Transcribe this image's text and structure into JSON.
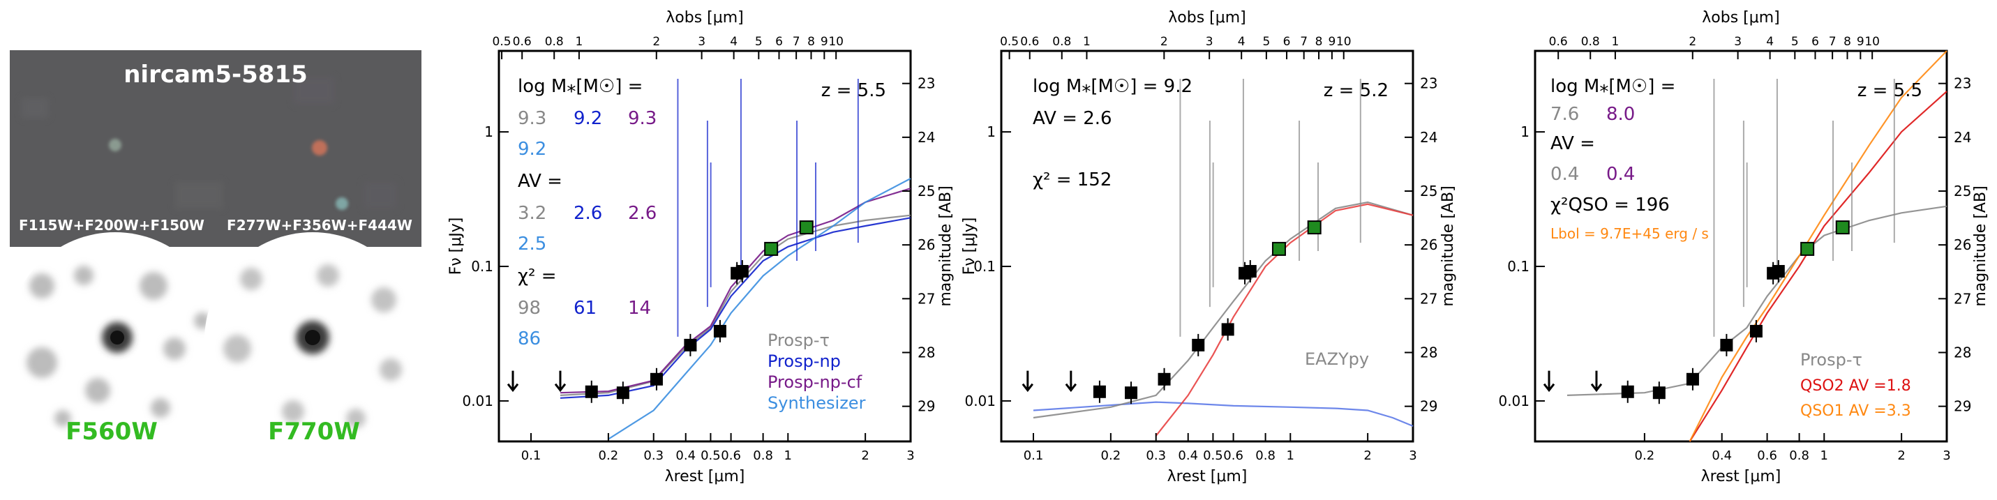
{
  "images": {
    "rgb_title": "nircam5-5815",
    "rgb_label_left": "F115W+F200W+F150W",
    "rgb_label_right": "F277W+F356W+F444W",
    "miri_label_left": "F560W",
    "miri_label_right": "F770W",
    "miri_label_color": "#33bb22"
  },
  "colors": {
    "prosp_tau": "#888888",
    "prosp_np": "#1122cc",
    "prosp_np_cf": "#771a88",
    "synthesizer": "#3b8ee0",
    "eazy": "#5d7ae8",
    "red_model": "#e84040",
    "qso2": "#dd1111",
    "qso1": "#ff8811",
    "miri_points": "#1f8a1f"
  },
  "chart_data": [
    {
      "type": "line",
      "xlabel": "λrest [μm]",
      "ylabel": "Fν [μJy]",
      "top_xlabel": "λobs [μm]",
      "right_ylabel": "magnitude [AB]",
      "xlog": true,
      "ylog": true,
      "xlim": [
        0.075,
        3.0
      ],
      "ylim": [
        0.005,
        4.0
      ],
      "x_ticks": [
        "0.1",
        "0.2",
        "0.3",
        "0.4",
        "0.5",
        "0.6",
        "0.8",
        "1",
        "2",
        "3"
      ],
      "y_ticks": [
        "0.01",
        "0.1",
        "1"
      ],
      "top_ticks": [
        "0.5",
        "0.6",
        "0.8",
        "1",
        "2",
        "3",
        "4",
        "5",
        "6",
        "7",
        "8",
        "9",
        "10"
      ],
      "mag_ticks": [
        "23",
        "24",
        "25",
        "26",
        "27",
        "28",
        "29"
      ],
      "redshift": "z = 5.5",
      "annotations": {
        "mass_label": "log M⁎[M☉] =",
        "mass_values": [
          [
            "9.3",
            "9.2",
            "9.3"
          ],
          [
            "9.2"
          ]
        ],
        "av_label": "AV =",
        "av_values": [
          [
            "3.2",
            "2.6",
            "2.6"
          ],
          [
            "2.5"
          ]
        ],
        "chi_label": "χ² =",
        "chi_values": [
          [
            "98",
            "61",
            "14"
          ],
          [
            "86"
          ]
        ]
      },
      "legend": [
        "Prosp-τ",
        "Prosp-np",
        "Prosp-np-cf",
        "Synthesizer"
      ],
      "photometry": [
        {
          "x": 0.172,
          "y": 0.0117,
          "type": "point"
        },
        {
          "x": 0.228,
          "y": 0.0115,
          "type": "point"
        },
        {
          "x": 0.308,
          "y": 0.0145,
          "type": "point"
        },
        {
          "x": 0.417,
          "y": 0.026,
          "type": "point"
        },
        {
          "x": 0.544,
          "y": 0.033,
          "type": "point"
        },
        {
          "x": 0.633,
          "y": 0.089,
          "type": "point"
        },
        {
          "x": 0.664,
          "y": 0.092,
          "type": "point"
        },
        {
          "x": 0.86,
          "y": 0.135,
          "type": "miri"
        },
        {
          "x": 1.18,
          "y": 0.195,
          "type": "miri"
        }
      ],
      "upper_limits": [
        0.085,
        0.13
      ],
      "models": [
        {
          "name": "Prosp-τ",
          "points": [
            [
              0.13,
              0.011
            ],
            [
              0.2,
              0.0115
            ],
            [
              0.3,
              0.014
            ],
            [
              0.4,
              0.025
            ],
            [
              0.5,
              0.035
            ],
            [
              0.6,
              0.065
            ],
            [
              0.8,
              0.12
            ],
            [
              1.0,
              0.16
            ],
            [
              1.5,
              0.2
            ],
            [
              2.0,
              0.22
            ],
            [
              3.0,
              0.24
            ]
          ]
        },
        {
          "name": "Prosp-np",
          "points": [
            [
              0.13,
              0.0105
            ],
            [
              0.2,
              0.011
            ],
            [
              0.3,
              0.013
            ],
            [
              0.4,
              0.024
            ],
            [
              0.5,
              0.034
            ],
            [
              0.6,
              0.06
            ],
            [
              0.8,
              0.11
            ],
            [
              1.0,
              0.14
            ],
            [
              1.5,
              0.18
            ],
            [
              2.0,
              0.2
            ],
            [
              3.0,
              0.23
            ]
          ]
        },
        {
          "name": "Prosp-np-cf",
          "points": [
            [
              0.13,
              0.0115
            ],
            [
              0.2,
              0.0118
            ],
            [
              0.3,
              0.0142
            ],
            [
              0.4,
              0.026
            ],
            [
              0.5,
              0.036
            ],
            [
              0.6,
              0.07
            ],
            [
              0.8,
              0.13
            ],
            [
              1.0,
              0.17
            ],
            [
              1.5,
              0.22
            ],
            [
              2.0,
              0.3
            ],
            [
              3.0,
              0.38
            ]
          ]
        },
        {
          "name": "Synthesizer",
          "points": [
            [
              0.2,
              0.0052
            ],
            [
              0.3,
              0.0085
            ],
            [
              0.4,
              0.016
            ],
            [
              0.5,
              0.026
            ],
            [
              0.6,
              0.045
            ],
            [
              0.8,
              0.085
            ],
            [
              1.0,
              0.12
            ],
            [
              1.5,
              0.2
            ],
            [
              2.0,
              0.3
            ],
            [
              3.0,
              0.45
            ]
          ]
        }
      ]
    },
    {
      "type": "line",
      "xlabel": "λrest [μm]",
      "ylabel": "Fν [μJy]",
      "top_xlabel": "λobs [μm]",
      "right_ylabel": "magnitude [AB]",
      "xlog": true,
      "ylog": true,
      "xlim": [
        0.075,
        3.0
      ],
      "ylim": [
        0.005,
        4.0
      ],
      "x_ticks": [
        "0.1",
        "0.2",
        "0.3",
        "0.4",
        "0.5",
        "0.6",
        "0.8",
        "1",
        "2",
        "3"
      ],
      "y_ticks": [
        "0.01",
        "0.1",
        "1"
      ],
      "top_ticks": [
        "0.5",
        "0.6",
        "0.8",
        "1",
        "2",
        "3",
        "4",
        "5",
        "6",
        "7",
        "8",
        "9",
        "10"
      ],
      "mag_ticks": [
        "23",
        "24",
        "25",
        "26",
        "27",
        "28",
        "29"
      ],
      "redshift": "z = 5.2",
      "annotations": {
        "mass_label": "log M⁎[M☉] = 9.2",
        "av_label": "AV = 2.6",
        "chi_label": "χ² = 152"
      },
      "legend": [
        "EAZYpy"
      ],
      "photometry": [
        {
          "x": 0.181,
          "y": 0.0117,
          "type": "point"
        },
        {
          "x": 0.24,
          "y": 0.0115,
          "type": "point"
        },
        {
          "x": 0.323,
          "y": 0.0145,
          "type": "point"
        },
        {
          "x": 0.438,
          "y": 0.026,
          "type": "point"
        },
        {
          "x": 0.571,
          "y": 0.034,
          "type": "point"
        },
        {
          "x": 0.665,
          "y": 0.089,
          "type": "point"
        },
        {
          "x": 0.698,
          "y": 0.092,
          "type": "point"
        },
        {
          "x": 0.903,
          "y": 0.135,
          "type": "miri"
        },
        {
          "x": 1.24,
          "y": 0.195,
          "type": "miri"
        }
      ],
      "upper_limits": [
        0.095,
        0.14
      ],
      "models": [
        {
          "name": "EAZYpy",
          "points": [
            [
              0.1,
              0.0085
            ],
            [
              0.2,
              0.0093
            ],
            [
              0.3,
              0.0098
            ],
            [
              0.4,
              0.0096
            ],
            [
              0.6,
              0.0092
            ],
            [
              1.0,
              0.009
            ],
            [
              1.5,
              0.0088
            ],
            [
              2.0,
              0.0085
            ],
            [
              2.5,
              0.0075
            ],
            [
              3.0,
              0.0065
            ]
          ]
        },
        {
          "name": "Prosp-τ",
          "points": [
            [
              0.1,
              0.0075
            ],
            [
              0.2,
              0.009
            ],
            [
              0.3,
              0.011
            ],
            [
              0.4,
              0.02
            ],
            [
              0.5,
              0.035
            ],
            [
              0.6,
              0.055
            ],
            [
              0.8,
              0.11
            ],
            [
              1.0,
              0.16
            ],
            [
              1.5,
              0.27
            ],
            [
              2.0,
              0.3
            ],
            [
              3.0,
              0.24
            ]
          ]
        },
        {
          "name": "Red",
          "points": [
            [
              0.3,
              0.0055
            ],
            [
              0.4,
              0.011
            ],
            [
              0.5,
              0.022
            ],
            [
              0.6,
              0.042
            ],
            [
              0.8,
              0.1
            ],
            [
              1.0,
              0.15
            ],
            [
              1.5,
              0.26
            ],
            [
              2.0,
              0.29
            ],
            [
              3.0,
              0.24
            ]
          ]
        }
      ]
    },
    {
      "type": "line",
      "xlabel": "λrest [μm]",
      "ylabel": "magnitude [AB]",
      "top_xlabel": "λobs [μm]",
      "xlog": true,
      "ylog": true,
      "xlim": [
        0.075,
        3.0
      ],
      "ylim": [
        0.005,
        4.0
      ],
      "x_ticks": [
        "0.2",
        "0.4",
        "0.6",
        "0.8",
        "1",
        "2",
        "3"
      ],
      "y_ticks": [
        "0.01",
        "0.1",
        "1"
      ],
      "top_ticks": [
        "0.6",
        "0.8",
        "1",
        "2",
        "3",
        "4",
        "5",
        "6",
        "7",
        "8",
        "9",
        "10"
      ],
      "mag_ticks": [
        "23",
        "24",
        "25",
        "26",
        "27",
        "28",
        "29"
      ],
      "redshift": "z = 5.5",
      "annotations": {
        "mass_label": "log M⁎[M☉] =",
        "mass_values": [
          "7.6",
          "8.0"
        ],
        "av_label": "AV =",
        "av_values": [
          "0.4",
          "0.4"
        ],
        "chi_label": "χ²QSO = 196",
        "lbol": "Lbol = 9.7E+45 erg / s"
      },
      "legend": [
        "Prosp-τ",
        "QSO2 AV =1.8",
        "QSO1 AV =3.3"
      ],
      "photometry": [
        {
          "x": 0.172,
          "y": 0.0117,
          "type": "point"
        },
        {
          "x": 0.228,
          "y": 0.0115,
          "type": "point"
        },
        {
          "x": 0.308,
          "y": 0.0145,
          "type": "point"
        },
        {
          "x": 0.417,
          "y": 0.026,
          "type": "point"
        },
        {
          "x": 0.544,
          "y": 0.033,
          "type": "point"
        },
        {
          "x": 0.633,
          "y": 0.089,
          "type": "point"
        },
        {
          "x": 0.664,
          "y": 0.092,
          "type": "point"
        },
        {
          "x": 0.86,
          "y": 0.135,
          "type": "miri"
        },
        {
          "x": 1.18,
          "y": 0.195,
          "type": "miri"
        }
      ],
      "upper_limits": [
        0.085,
        0.13
      ],
      "models": [
        {
          "name": "Prosp-τ",
          "points": [
            [
              0.1,
              0.011
            ],
            [
              0.2,
              0.0115
            ],
            [
              0.3,
              0.0135
            ],
            [
              0.4,
              0.025
            ],
            [
              0.5,
              0.035
            ],
            [
              0.6,
              0.06
            ],
            [
              0.8,
              0.12
            ],
            [
              1.0,
              0.17
            ],
            [
              1.5,
              0.22
            ],
            [
              2.0,
              0.25
            ],
            [
              3.0,
              0.28
            ]
          ]
        },
        {
          "name": "QSO2",
          "points": [
            [
              0.3,
              0.005
            ],
            [
              0.4,
              0.012
            ],
            [
              0.5,
              0.025
            ],
            [
              0.6,
              0.045
            ],
            [
              0.8,
              0.1
            ],
            [
              1.0,
              0.2
            ],
            [
              1.5,
              0.5
            ],
            [
              2.0,
              1.0
            ],
            [
              3.0,
              2.0
            ]
          ]
        },
        {
          "name": "QSO1",
          "points": [
            [
              0.3,
              0.005
            ],
            [
              0.4,
              0.015
            ],
            [
              0.5,
              0.03
            ],
            [
              0.6,
              0.05
            ],
            [
              0.8,
              0.12
            ],
            [
              1.0,
              0.24
            ],
            [
              1.5,
              0.8
            ],
            [
              2.0,
              1.8
            ],
            [
              3.0,
              4.0
            ]
          ]
        }
      ]
    }
  ]
}
